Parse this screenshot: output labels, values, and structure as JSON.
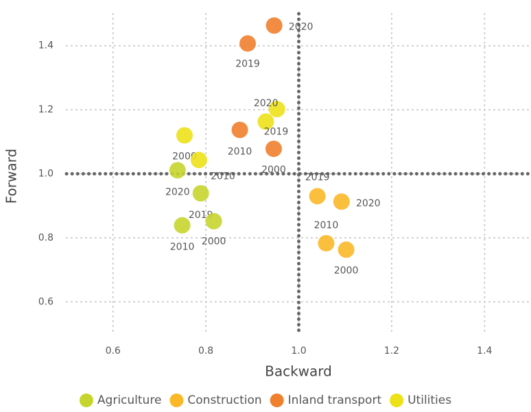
{
  "chart_data": {
    "type": "scatter",
    "x_label": "Backward",
    "y_label": "Forward",
    "xlim": [
      0.5,
      1.5
    ],
    "ylim": [
      0.5,
      1.5
    ],
    "xticks": [
      0.6,
      0.8,
      {
        "value": 1,
        "label": "1.0"
      },
      1.2,
      1.4
    ],
    "yticks": [
      0.6,
      0.8,
      {
        "value": 1,
        "label": "1.0"
      },
      1.2,
      1.4
    ],
    "grid": true,
    "reference_x": 1,
    "reference_y": 1,
    "legend": "bottom",
    "series": [
      {
        "name": "Agriculture",
        "color": "#c6d52e",
        "x": [
          0.739,
          0.789,
          0.817,
          0.749
        ],
        "y": [
          1.011,
          0.939,
          0.852,
          0.839
        ],
        "labels": [
          "2020",
          "2019",
          "2000",
          "2010"
        ]
      },
      {
        "name": "Construction",
        "color": "#fbb829",
        "x": [
          1.04,
          1.092,
          1.059,
          1.102
        ],
        "y": [
          0.93,
          0.913,
          0.783,
          0.763
        ],
        "labels": [
          "2019",
          "2020",
          "2010",
          "2000"
        ]
      },
      {
        "name": "Inland transport",
        "color": "#f07f2e",
        "x": [
          0.947,
          0.89,
          0.873,
          0.946
        ],
        "y": [
          1.463,
          1.407,
          1.137,
          1.078
        ],
        "labels": [
          "2020",
          "2019",
          "2010",
          "2000"
        ]
      },
      {
        "name": "Utilities",
        "color": "#ede119",
        "x": [
          0.754,
          0.785,
          0.929,
          0.953
        ],
        "y": [
          1.12,
          1.043,
          1.163,
          1.202
        ],
        "labels": [
          "2000",
          "2010",
          "2019",
          "2020"
        ]
      }
    ]
  }
}
